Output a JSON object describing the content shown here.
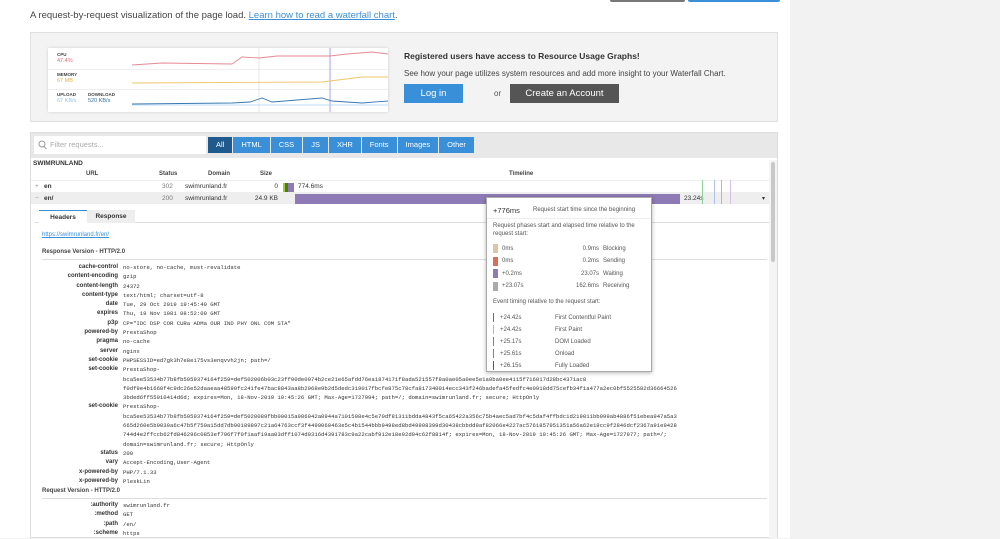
{
  "intro": {
    "text": "A request-by-request visualization of the page load. ",
    "link": "Learn how to read a waterfall chart",
    "end": "."
  },
  "resource": {
    "cpu_label": "CPU",
    "cpu_value": "47.4%",
    "memory_label": "MEMORY",
    "memory_value": "67 MB",
    "upload_label": "UPLOAD",
    "upload_value": "67 KB/s",
    "download_label": "DOWNLOAD",
    "download_value": "520 KB/s",
    "title": "Registered users have access to Resource Usage Graphs!",
    "desc": "See how your page utilizes system resources and add more insight to your Waterfall Chart.",
    "login": "Log in",
    "or": "or",
    "create": "Create an Account",
    "colors": {
      "cpu": "#e06c75",
      "memory": "#e8b04a",
      "upload": "#8cc4ec",
      "download": "#2f6fa8"
    }
  },
  "filter": {
    "placeholder": "Filter requests...",
    "buttons": [
      "All",
      "HTML",
      "CSS",
      "JS",
      "XHR",
      "Fonts",
      "Images",
      "Other"
    ],
    "active": "All"
  },
  "site": "SWIMRUNLAND",
  "columns": {
    "url": "URL",
    "status": "Status",
    "domain": "Domain",
    "size": "Size",
    "timeline": "Timeline"
  },
  "rows": [
    {
      "toggle": "+",
      "url": "en",
      "status": "302",
      "domain": "swimrunland.fr",
      "size": "0",
      "time": "774.6ms"
    },
    {
      "toggle": "−",
      "url": "en/",
      "status": "200",
      "domain": "swimrunland.fr",
      "size": "24.9 KB",
      "time": "23.24s"
    }
  ],
  "detail": {
    "tabs": [
      "Headers",
      "Response"
    ],
    "link": "https://swimrunland.fr/en/",
    "response_section": "Response Version - HTTP/2.0",
    "response_headers": [
      {
        "k": "cache-control",
        "v": [
          "no-store, no-cache, must-revalidate"
        ]
      },
      {
        "k": "content-encoding",
        "v": [
          "gzip"
        ]
      },
      {
        "k": "content-length",
        "v": [
          "24372"
        ]
      },
      {
        "k": "content-type",
        "v": [
          "text/html; charset=utf-8"
        ]
      },
      {
        "k": "date",
        "v": [
          "Tue, 29 Oct 2019 19:45:49 GMT"
        ]
      },
      {
        "k": "expires",
        "v": [
          "Thu, 19 Nov 1981 08:52:00 GMT"
        ]
      },
      {
        "k": "p3p",
        "v": [
          "CP=\"IDC DSP COR CURa ADMa OUR IND PHY ONL COM STA\""
        ]
      },
      {
        "k": "powered-by",
        "v": [
          "PrestaShop"
        ]
      },
      {
        "k": "pragma",
        "v": [
          "no-cache"
        ]
      },
      {
        "k": "server",
        "v": [
          "nginx"
        ]
      },
      {
        "k": "set-cookie",
        "v": [
          "PHPSESSID=ed7gk3h7e8ei75vs3enqvvh2jn; path=/"
        ]
      },
      {
        "k": "set-cookie",
        "v": [
          "PrestaShop-",
          "bca5ee53534b77b8fb5959374164f259=def502006b03c23ff00de0974b2ce21e65afdd76ea1874171f8ada521557f8a0ae05a0ee5e1a0ba0ee4115f716017d28bc4371ac8",
          "f0df9e4b1660f4c9dc26e52daaeaa48599fc241fe47bac8843aa8b2968e9b2d5dedc319017fbcfe875c78cfa817340014ecc343f246badefa45fedfc4e0918dd75cefb34f1a477a2ec0bf5525582d36664526",
          "3bded6ff55910414d6d; expires=Mon, 18-Nov-2019 19:45:26 GMT; Max-Age=1727994; path=/; domain=swimrunland.fr; secure; HttpOnly"
        ]
      },
      {
        "k": "set-cookie",
        "v": [
          "PrestaShop-",
          "bca5ee53534b77b8fb5959374164f259=def5020089fbb00015a986942a0944a7101598e4c5e70df81311bdda4843f5ca65422a356c75b4aec5ad7bf4c5daf4ffbdc1d219011bb999ab4886f51ebea947a5a3",
          "665d260e5b9030a6c47b5f750a15dd7db90189897c21a64763ccf3f4499060463e5c4b1544bbb9498ed8bd49998399d30438cbbdd9af82066e4227ac5761857951351a56a62e19cc9f2846dcf2367a91e9428",
          "744d4e2ffccb62fd846296c0853ef796f7f0f1aaf19aa03dff1074d0316d4391783c9a22cabf912e18e92d04c62f8814f; expires=Mon, 18-Nov-2019 19:45:26 GMT; Max-Age=1727977; path=/;",
          "domain=swimrunland.fr; secure; HttpOnly"
        ]
      },
      {
        "k": "status",
        "v": [
          "200"
        ]
      },
      {
        "k": "vary",
        "v": [
          "Accept-Encoding,User-Agent"
        ]
      },
      {
        "k": "x-powered-by",
        "v": [
          "PHP/7.1.33"
        ]
      },
      {
        "k": "x-powered-by",
        "v": [
          "PleskLin"
        ]
      }
    ],
    "request_section": "Request Version - HTTP/2.0",
    "request_headers": [
      {
        "k": ":authority",
        "v": [
          "swimrunland.fr"
        ]
      },
      {
        "k": ":method",
        "v": [
          "GET"
        ]
      },
      {
        "k": ":path",
        "v": [
          "/en/"
        ]
      },
      {
        "k": ":scheme",
        "v": [
          "https"
        ]
      }
    ]
  },
  "tooltip": {
    "start": "+776ms",
    "start_desc": "Request start time since the beginning",
    "phases_desc": "Request phases start and elapsed time relative to the request start:",
    "phases": [
      {
        "start": "0ms",
        "elapsed": "0.9ms",
        "name": "Blocking",
        "color": "#dcc6a8"
      },
      {
        "start": "0ms",
        "elapsed": "0.2ms",
        "name": "Sending",
        "color": "#d9705a"
      },
      {
        "start": "+0.2ms",
        "elapsed": "23.07s",
        "name": "Waiting",
        "color": "#8e7ab5"
      },
      {
        "start": "+23.07s",
        "elapsed": "162.6ms",
        "name": "Receiving",
        "color": "#aaaaaa"
      }
    ],
    "events_desc": "Event timing relative to the request start:",
    "events": [
      {
        "time": "+24.42s",
        "name": "First Contentful Paint",
        "color": "#2a9d3a"
      },
      {
        "time": "+24.42s",
        "name": "First Paint",
        "color": "#8fcf9a"
      },
      {
        "time": "+25.17s",
        "name": "DOM Loaded",
        "color": "#3a8fd9"
      },
      {
        "time": "+25.61s",
        "name": "Onload",
        "color": "#e05a5a"
      },
      {
        "time": "+26.15s",
        "name": "Fully Loaded",
        "color": "#7a3f8f"
      }
    ]
  }
}
